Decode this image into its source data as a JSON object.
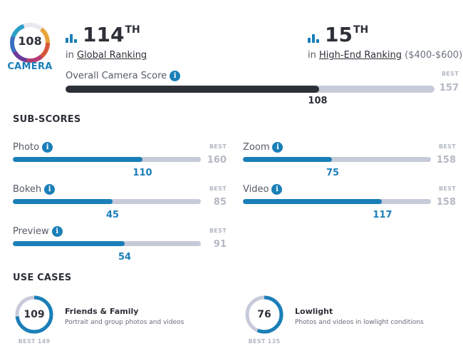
{
  "badge": {
    "score": "108",
    "label": "CAMERA",
    "ring_colors": [
      "#e8a43a",
      "#d8573a",
      "#b43a72",
      "#6e3a9a",
      "#3a6fc0",
      "#2aa0c8"
    ]
  },
  "global_rank": {
    "number": "114",
    "suffix": "TH",
    "prefix": "in",
    "link": "Global Ranking"
  },
  "segment_rank": {
    "number": "15",
    "suffix": "TH",
    "prefix": "in",
    "link": "High-End Ranking",
    "range": "($400-$600)"
  },
  "overall": {
    "label": "Overall Camera Score",
    "value": "108",
    "best_label": "BEST",
    "best": "157",
    "fraction": 0.6879
  },
  "subscores": {
    "title": "SUB-SCORES",
    "photo": {
      "label": "Photo",
      "value": "110",
      "best_label": "BEST",
      "best": "160",
      "fraction": 0.6875
    },
    "zoom": {
      "label": "Zoom",
      "value": "75",
      "best_label": "BEST",
      "best": "158",
      "fraction": 0.4747
    },
    "bokeh": {
      "label": "Bokeh",
      "value": "45",
      "best_label": "BEST",
      "best": "85",
      "fraction": 0.5294
    },
    "video": {
      "label": "Video",
      "value": "117",
      "best_label": "BEST",
      "best": "158",
      "fraction": 0.7405
    },
    "preview": {
      "label": "Preview",
      "value": "54",
      "best_label": "BEST",
      "best": "91",
      "fraction": 0.5934
    }
  },
  "use_cases": {
    "title": "USE CASES",
    "friends": {
      "score": "109",
      "best": "BEST 149",
      "title": "Friends & Family",
      "desc": "Portrait and group photos and videos",
      "fraction": 0.7315
    },
    "lowlight": {
      "score": "76",
      "best": "BEST 135",
      "title": "Lowlight",
      "desc": "Photos and videos in lowlight conditions",
      "fraction": 0.563
    }
  },
  "colors": {
    "accent": "#1a7fb8",
    "dark": "#2d3038",
    "track": "#c7cbd9",
    "muted": "#b3b8c4"
  }
}
